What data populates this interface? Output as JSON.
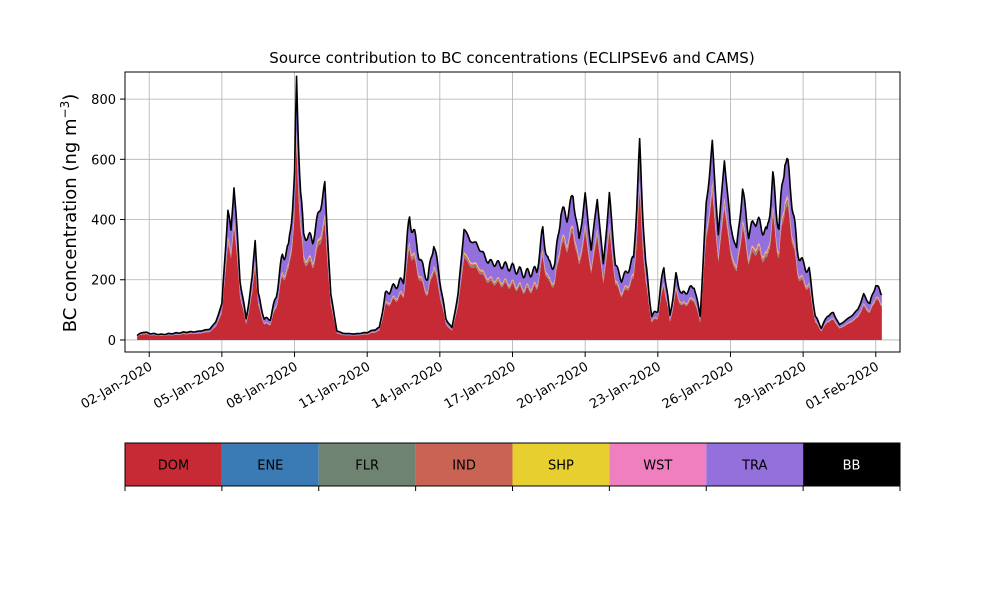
{
  "chart_data": {
    "type": "area",
    "stacked": true,
    "title": "Source contribution to BC concentrations (ECLIPSEv6 and CAMS)",
    "ylabel": "BC concentration (ng m",
    "ylabel_sup": "−3",
    "ylabel_close": ")",
    "xlabel": "",
    "ylim": [
      -40,
      890
    ],
    "xlim": [
      "2020-01-01",
      "2020-02-02"
    ],
    "grid": true,
    "yticks": [
      0,
      200,
      400,
      600,
      800
    ],
    "ytick_labels": [
      "0",
      "200",
      "400",
      "600",
      "800"
    ],
    "xticks": [
      "2020-01-02",
      "2020-01-05",
      "2020-01-08",
      "2020-01-11",
      "2020-01-14",
      "2020-01-17",
      "2020-01-20",
      "2020-01-23",
      "2020-01-26",
      "2020-01-29",
      "2020-02-01"
    ],
    "xtick_labels": [
      "02-Jan-2020",
      "05-Jan-2020",
      "08-Jan-2020",
      "11-Jan-2020",
      "14-Jan-2020",
      "17-Jan-2020",
      "20-Jan-2020",
      "23-Jan-2020",
      "26-Jan-2020",
      "29-Jan-2020",
      "01-Feb-2020"
    ],
    "total_points": [
      [
        "2020-01-01 12:00",
        15
      ],
      [
        "2020-01-01 18:00",
        27
      ],
      [
        "2020-01-02 00:00",
        22
      ],
      [
        "2020-01-02 12:00",
        18
      ],
      [
        "2020-01-03 00:00",
        22
      ],
      [
        "2020-01-03 12:00",
        26
      ],
      [
        "2020-01-04 00:00",
        28
      ],
      [
        "2020-01-04 12:00",
        36
      ],
      [
        "2020-01-04 18:00",
        60
      ],
      [
        "2020-01-05 00:00",
        120
      ],
      [
        "2020-01-05 06:00",
        430
      ],
      [
        "2020-01-05 09:00",
        360
      ],
      [
        "2020-01-05 12:00",
        520
      ],
      [
        "2020-01-05 18:00",
        200
      ],
      [
        "2020-01-06 00:00",
        70
      ],
      [
        "2020-01-06 06:00",
        200
      ],
      [
        "2020-01-06 09:00",
        350
      ],
      [
        "2020-01-06 12:00",
        150
      ],
      [
        "2020-01-06 18:00",
        70
      ],
      [
        "2020-01-07 00:00",
        70
      ],
      [
        "2020-01-07 06:00",
        150
      ],
      [
        "2020-01-07 12:00",
        280
      ],
      [
        "2020-01-07 18:00",
        300
      ],
      [
        "2020-01-08 00:00",
        530
      ],
      [
        "2020-01-08 02:00",
        845
      ],
      [
        "2020-01-08 06:00",
        500
      ],
      [
        "2020-01-08 09:00",
        340
      ],
      [
        "2020-01-08 12:00",
        350
      ],
      [
        "2020-01-08 18:00",
        330
      ],
      [
        "2020-01-09 00:00",
        420
      ],
      [
        "2020-01-09 06:00",
        510
      ],
      [
        "2020-01-09 12:00",
        150
      ],
      [
        "2020-01-09 18:00",
        30
      ],
      [
        "2020-01-10 00:00",
        22
      ],
      [
        "2020-01-10 12:00",
        20
      ],
      [
        "2020-01-11 00:00",
        25
      ],
      [
        "2020-01-11 12:00",
        40
      ],
      [
        "2020-01-11 18:00",
        150
      ],
      [
        "2020-01-12 00:00",
        170
      ],
      [
        "2020-01-12 12:00",
        200
      ],
      [
        "2020-01-12 18:00",
        410
      ],
      [
        "2020-01-13 00:00",
        330
      ],
      [
        "2020-01-13 06:00",
        250
      ],
      [
        "2020-01-13 12:00",
        200
      ],
      [
        "2020-01-13 18:00",
        325
      ],
      [
        "2020-01-14 00:00",
        200
      ],
      [
        "2020-01-14 06:00",
        70
      ],
      [
        "2020-01-14 12:00",
        40
      ],
      [
        "2020-01-14 18:00",
        150
      ],
      [
        "2020-01-15 00:00",
        370
      ],
      [
        "2020-01-15 06:00",
        330
      ],
      [
        "2020-01-15 12:00",
        320
      ],
      [
        "2020-01-15 18:00",
        290
      ],
      [
        "2020-01-16 00:00",
        260
      ],
      [
        "2020-01-16 12:00",
        250
      ],
      [
        "2020-01-17 00:00",
        240
      ],
      [
        "2020-01-17 12:00",
        220
      ],
      [
        "2020-01-18 00:00",
        230
      ],
      [
        "2020-01-18 06:00",
        360
      ],
      [
        "2020-01-18 12:00",
        250
      ],
      [
        "2020-01-18 18:00",
        250
      ],
      [
        "2020-01-19 00:00",
        430
      ],
      [
        "2020-01-19 06:00",
        410
      ],
      [
        "2020-01-19 12:00",
        480
      ],
      [
        "2020-01-19 18:00",
        330
      ],
      [
        "2020-01-20 00:00",
        480
      ],
      [
        "2020-01-20 06:00",
        300
      ],
      [
        "2020-01-20 12:00",
        470
      ],
      [
        "2020-01-20 18:00",
        250
      ],
      [
        "2020-01-21 00:00",
        480
      ],
      [
        "2020-01-21 06:00",
        250
      ],
      [
        "2020-01-21 12:00",
        200
      ],
      [
        "2020-01-21 18:00",
        230
      ],
      [
        "2020-01-22 00:00",
        270
      ],
      [
        "2020-01-22 06:00",
        630
      ],
      [
        "2020-01-22 12:00",
        250
      ],
      [
        "2020-01-22 18:00",
        80
      ],
      [
        "2020-01-23 00:00",
        100
      ],
      [
        "2020-01-23 06:00",
        250
      ],
      [
        "2020-01-23 12:00",
        80
      ],
      [
        "2020-01-23 18:00",
        210
      ],
      [
        "2020-01-24 00:00",
        150
      ],
      [
        "2020-01-24 12:00",
        180
      ],
      [
        "2020-01-24 18:00",
        80
      ],
      [
        "2020-01-25 00:00",
        450
      ],
      [
        "2020-01-25 06:00",
        650
      ],
      [
        "2020-01-25 12:00",
        350
      ],
      [
        "2020-01-25 18:00",
        600
      ],
      [
        "2020-01-26 00:00",
        380
      ],
      [
        "2020-01-26 06:00",
        300
      ],
      [
        "2020-01-26 12:00",
        500
      ],
      [
        "2020-01-26 18:00",
        350
      ],
      [
        "2020-01-27 00:00",
        400
      ],
      [
        "2020-01-27 06:00",
        380
      ],
      [
        "2020-01-27 12:00",
        350
      ],
      [
        "2020-01-27 18:00",
        530
      ],
      [
        "2020-01-28 00:00",
        370
      ],
      [
        "2020-01-28 06:00",
        620
      ],
      [
        "2020-01-28 12:00",
        500
      ],
      [
        "2020-01-28 18:00",
        300
      ],
      [
        "2020-01-29 00:00",
        250
      ],
      [
        "2020-01-29 06:00",
        230
      ],
      [
        "2020-01-29 12:00",
        80
      ],
      [
        "2020-01-29 18:00",
        40
      ],
      [
        "2020-01-30 00:00",
        80
      ],
      [
        "2020-01-30 06:00",
        90
      ],
      [
        "2020-01-30 12:00",
        50
      ],
      [
        "2020-01-31 00:00",
        80
      ],
      [
        "2020-01-31 06:00",
        100
      ],
      [
        "2020-01-31 12:00",
        150
      ],
      [
        "2020-01-31 18:00",
        120
      ],
      [
        "2020-02-01 00:00",
        185
      ],
      [
        "2020-02-01 06:00",
        150
      ]
    ],
    "series": [
      {
        "name": "DOM",
        "color": "#c62b35",
        "fraction": 0.74
      },
      {
        "name": "ENE",
        "color": "#3a7ab5",
        "fraction": 0.005
      },
      {
        "name": "FLR",
        "color": "#6f8373",
        "fraction": 0.01
      },
      {
        "name": "IND",
        "color": "#c96455",
        "fraction": 0.02
      },
      {
        "name": "SHP",
        "color": "#e6cf2e",
        "fraction": 0.01
      },
      {
        "name": "WST",
        "color": "#f07fbf",
        "fraction": 0.01
      },
      {
        "name": "TRA",
        "color": "#9370db",
        "fraction": 0.205
      },
      {
        "name": "BB",
        "color": "#000000",
        "fraction": 0.0
      }
    ],
    "legend": [
      {
        "name": "DOM",
        "color": "#c62b35",
        "text_color": "#000000"
      },
      {
        "name": "ENE",
        "color": "#3a7ab5",
        "text_color": "#000000"
      },
      {
        "name": "FLR",
        "color": "#6f8373",
        "text_color": "#000000"
      },
      {
        "name": "IND",
        "color": "#c96455",
        "text_color": "#000000"
      },
      {
        "name": "SHP",
        "color": "#e6cf2e",
        "text_color": "#000000"
      },
      {
        "name": "WST",
        "color": "#f07fbf",
        "text_color": "#000000"
      },
      {
        "name": "TRA",
        "color": "#9370db",
        "text_color": "#000000"
      },
      {
        "name": "BB",
        "color": "#000000",
        "text_color": "#ffffff"
      }
    ],
    "legend_placement": "bottom"
  }
}
